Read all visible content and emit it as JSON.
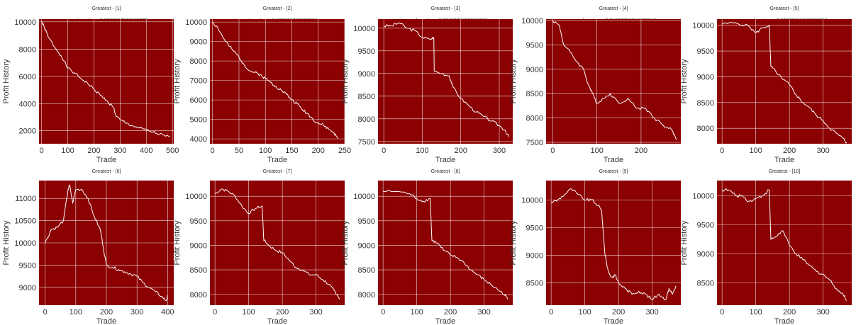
{
  "chart_data": [
    {
      "type": "line",
      "title_lines": [
        "Greatest - [1]",
        "max drawdown:0.8529563568115235",
        "[GBPJPY=X MLPClassifier]"
      ],
      "xlabel": "Trade",
      "ylabel": "Profit History",
      "xlim": [
        -10,
        505
      ],
      "ylim": [
        1050,
        10200
      ],
      "xticks": [
        0,
        100,
        200,
        300,
        400,
        500
      ],
      "yticks": [
        2000,
        4000,
        6000,
        8000,
        10000
      ],
      "grid": true,
      "series": [
        {
          "x": [
            0,
            10,
            25,
            50,
            75,
            100,
            125,
            150,
            175,
            200,
            225,
            250,
            275,
            285,
            300,
            325,
            350,
            375,
            400,
            425,
            450,
            475,
            490
          ],
          "values": [
            10000,
            9600,
            8900,
            8150,
            7500,
            6600,
            6250,
            5850,
            5500,
            5050,
            4600,
            4200,
            3700,
            3050,
            2800,
            2550,
            2350,
            2200,
            2050,
            1900,
            1750,
            1600,
            1550
          ]
        }
      ],
      "colors": {
        "background": "#8b0000",
        "line": "#ffffff",
        "grid": "#ffffff"
      }
    },
    {
      "type": "line",
      "title_lines": [
        "Greatest - [2]",
        "max drawdown:0.602866746520996",
        "[EURJPY=X MLPClassifier]"
      ],
      "xlabel": "Trade",
      "ylabel": "Profit History",
      "xlim": [
        -5,
        250
      ],
      "ylim": [
        3750,
        10150
      ],
      "xticks": [
        0,
        50,
        100,
        150,
        200,
        250
      ],
      "yticks": [
        4000,
        5000,
        6000,
        7000,
        8000,
        9000,
        10000
      ],
      "grid": true,
      "series": [
        {
          "x": [
            0,
            10,
            20,
            30,
            40,
            50,
            60,
            70,
            80,
            90,
            100,
            110,
            120,
            130,
            140,
            150,
            160,
            170,
            180,
            190,
            200,
            210,
            220,
            230,
            237
          ],
          "values": [
            10000,
            9700,
            9200,
            8800,
            8500,
            8200,
            7800,
            7500,
            7400,
            7300,
            7100,
            6900,
            6700,
            6500,
            6300,
            6000,
            5800,
            5500,
            5300,
            5000,
            4800,
            4700,
            4500,
            4300,
            4000
          ]
        }
      ],
      "colors": {
        "background": "#8b0000",
        "line": "#ffffff",
        "grid": "#ffffff"
      }
    },
    {
      "type": "line",
      "title_lines": [
        "Greatest - [3]",
        "max drawdown:0.2549305430691612",
        "[USDCHF=X RandomForestClassifier]"
      ],
      "xlabel": "Trade",
      "ylabel": "Profit History",
      "xlim": [
        -15,
        335
      ],
      "ylim": [
        7450,
        10200
      ],
      "xticks": [
        0,
        100,
        200,
        300
      ],
      "yticks": [
        7500,
        8000,
        8500,
        9000,
        9500,
        10000
      ],
      "grid": true,
      "series": [
        {
          "x": [
            0,
            20,
            40,
            60,
            80,
            100,
            120,
            130,
            131,
            150,
            170,
            180,
            200,
            220,
            240,
            260,
            280,
            300,
            315,
            325
          ],
          "values": [
            10050,
            10050,
            10120,
            10000,
            9950,
            9800,
            9750,
            9800,
            9050,
            9000,
            8950,
            8700,
            8450,
            8300,
            8150,
            8050,
            7950,
            7850,
            7750,
            7600
          ]
        }
      ],
      "colors": {
        "background": "#8b0000",
        "line": "#ffffff",
        "grid": "#ffffff"
      }
    },
    {
      "type": "line",
      "title_lines": [
        "Greatest - [4]",
        "max drawdown:0.24330850918889046",
        "[AUDUSD=X MLPRegressor]"
      ],
      "xlabel": "Trade",
      "ylabel": "Profit History",
      "xlim": [
        -15,
        290
      ],
      "ylim": [
        7470,
        10030
      ],
      "xticks": [
        0,
        100,
        200
      ],
      "yticks": [
        7500,
        8000,
        8500,
        9000,
        9500,
        10000
      ],
      "grid": true,
      "series": [
        {
          "x": [
            0,
            15,
            25,
            40,
            55,
            70,
            80,
            90,
            100,
            115,
            130,
            150,
            170,
            190,
            210,
            230,
            250,
            270,
            280
          ],
          "values": [
            10000,
            9900,
            9500,
            9350,
            9150,
            9000,
            8700,
            8500,
            8300,
            8400,
            8500,
            8300,
            8400,
            8200,
            8200,
            8000,
            7850,
            7750,
            7550
          ]
        }
      ],
      "colors": {
        "background": "#8b0000",
        "line": "#ffffff",
        "grid": "#ffffff"
      }
    },
    {
      "type": "line",
      "title_lines": [
        "Greatest - [5]",
        "max drawdown:0.23779801888652352",
        "[USDCHF=X ExtraTreesRegressor]"
      ],
      "xlabel": "Trade",
      "ylabel": "Profit History",
      "xlim": [
        -15,
        385
      ],
      "ylim": [
        7700,
        10120
      ],
      "xticks": [
        0,
        100,
        200,
        300
      ],
      "yticks": [
        8000,
        8500,
        9000,
        9500,
        10000
      ],
      "grid": true,
      "series": [
        {
          "x": [
            0,
            40,
            80,
            100,
            120,
            140,
            145,
            160,
            180,
            200,
            220,
            240,
            260,
            280,
            300,
            320,
            340,
            360,
            370
          ],
          "values": [
            10020,
            10050,
            9980,
            9850,
            9950,
            10000,
            9200,
            9100,
            8950,
            8850,
            8650,
            8500,
            8400,
            8250,
            8150,
            8000,
            7900,
            7800,
            7720
          ]
        }
      ],
      "colors": {
        "background": "#8b0000",
        "line": "#ffffff",
        "grid": "#ffffff"
      }
    },
    {
      "type": "line",
      "title_lines": [
        "Greatest - [6]",
        "max drawdown:0.2349348587186798",
        "[GBPJPY=X ExtraTreeClassifier]"
      ],
      "xlabel": "Trade",
      "ylabel": "Profit History",
      "xlim": [
        -20,
        420
      ],
      "ylim": [
        8600,
        11400
      ],
      "xticks": [
        0,
        100,
        200,
        300,
        400
      ],
      "yticks": [
        9000,
        9500,
        10000,
        10500,
        11000
      ],
      "grid": true,
      "series": [
        {
          "x": [
            0,
            20,
            40,
            60,
            75,
            80,
            90,
            100,
            120,
            140,
            160,
            180,
            190,
            200,
            220,
            240,
            260,
            280,
            300,
            320,
            340,
            360,
            380,
            395,
            400
          ],
          "values": [
            10000,
            10300,
            10350,
            10500,
            11200,
            11300,
            10900,
            11200,
            11200,
            11000,
            10600,
            10300,
            9900,
            9500,
            9450,
            9400,
            9350,
            9300,
            9250,
            9100,
            9000,
            8900,
            8800,
            8700,
            8800
          ]
        }
      ],
      "colors": {
        "background": "#8b0000",
        "line": "#ffffff",
        "grid": "#ffffff"
      }
    },
    {
      "type": "line",
      "title_lines": [
        "Greatest - [7]",
        "max drawdown:0.22619367195512863",
        "[USDCHF=X ExtraTreesClassifier]"
      ],
      "xlabel": "Trade",
      "ylabel": "Profit History",
      "xlim": [
        -15,
        385
      ],
      "ylim": [
        7780,
        10320
      ],
      "xticks": [
        0,
        100,
        200,
        300
      ],
      "yticks": [
        8000,
        8500,
        9000,
        9500,
        10000
      ],
      "grid": true,
      "series": [
        {
          "x": [
            0,
            20,
            40,
            60,
            80,
            100,
            120,
            140,
            145,
            160,
            180,
            200,
            220,
            240,
            260,
            280,
            300,
            320,
            340,
            360,
            370
          ],
          "values": [
            10050,
            10150,
            10100,
            10000,
            9800,
            9650,
            9750,
            9800,
            9100,
            9000,
            8900,
            8850,
            8700,
            8550,
            8500,
            8400,
            8400,
            8300,
            8200,
            8000,
            7900
          ]
        }
      ],
      "colors": {
        "background": "#8b0000",
        "line": "#ffffff",
        "grid": "#ffffff"
      }
    },
    {
      "type": "line",
      "title_lines": [
        "Greatest - [8]",
        "max drawdown:0.2221720880276873",
        "[USDCHF=X RandomForestClassifier]"
      ],
      "xlabel": "Trade",
      "ylabel": "Profit History",
      "xlim": [
        -15,
        385
      ],
      "ylim": [
        7780,
        10320
      ],
      "xticks": [
        0,
        100,
        200,
        300
      ],
      "yticks": [
        8000,
        8500,
        9000,
        9500,
        10000
      ],
      "grid": true,
      "series": [
        {
          "x": [
            0,
            40,
            80,
            100,
            120,
            140,
            145,
            160,
            180,
            200,
            220,
            240,
            260,
            280,
            300,
            320,
            340,
            360,
            370
          ],
          "values": [
            10100,
            10100,
            10050,
            9950,
            9900,
            9950,
            9100,
            9050,
            8900,
            8800,
            8750,
            8650,
            8500,
            8400,
            8300,
            8200,
            8100,
            8000,
            7900
          ]
        }
      ],
      "colors": {
        "background": "#8b0000",
        "line": "#ffffff",
        "grid": "#ffffff"
      }
    },
    {
      "type": "line",
      "title_lines": [
        "Greatest - [9]",
        "max drawdown:0.2108988559384105",
        "[GBPJPY=X BaggingRegressor]"
      ],
      "xlabel": "Trade",
      "ylabel": "Profit History",
      "xlim": [
        -15,
        385
      ],
      "ylim": [
        8100,
        10350
      ],
      "xticks": [
        0,
        100,
        200,
        300
      ],
      "yticks": [
        8500,
        9000,
        9500,
        10000
      ],
      "grid": true,
      "series": [
        {
          "x": [
            0,
            20,
            40,
            60,
            80,
            100,
            120,
            140,
            150,
            160,
            170,
            180,
            190,
            200,
            220,
            240,
            260,
            280,
            300,
            320,
            340,
            350,
            360,
            370
          ],
          "values": [
            9950,
            10000,
            10100,
            10200,
            10100,
            10000,
            10000,
            9900,
            9800,
            9000,
            8700,
            8600,
            8650,
            8500,
            8400,
            8300,
            8350,
            8300,
            8200,
            8300,
            8200,
            8400,
            8300,
            8450
          ]
        }
      ],
      "colors": {
        "background": "#8b0000",
        "line": "#ffffff",
        "grid": "#ffffff"
      }
    },
    {
      "type": "line",
      "title_lines": [
        "Greatest - [10]",
        "max drawdown:0.19881047857172704",
        "[USDCHF=X ExtraTreesRegressor]"
      ],
      "xlabel": "Trade",
      "ylabel": "Profit History",
      "xlim": [
        -15,
        385
      ],
      "ylim": [
        8120,
        10260
      ],
      "xticks": [
        0,
        100,
        200,
        300
      ],
      "yticks": [
        8500,
        9000,
        9500,
        10000
      ],
      "grid": true,
      "series": [
        {
          "x": [
            0,
            20,
            40,
            60,
            80,
            100,
            120,
            140,
            145,
            160,
            180,
            200,
            220,
            240,
            260,
            280,
            300,
            320,
            340,
            360,
            370
          ],
          "values": [
            10100,
            10100,
            10000,
            10000,
            9900,
            9950,
            10000,
            10100,
            9250,
            9300,
            9400,
            9150,
            9000,
            8900,
            8800,
            8700,
            8650,
            8550,
            8400,
            8300,
            8200
          ]
        }
      ],
      "colors": {
        "background": "#8b0000",
        "line": "#ffffff",
        "grid": "#ffffff"
      }
    }
  ]
}
